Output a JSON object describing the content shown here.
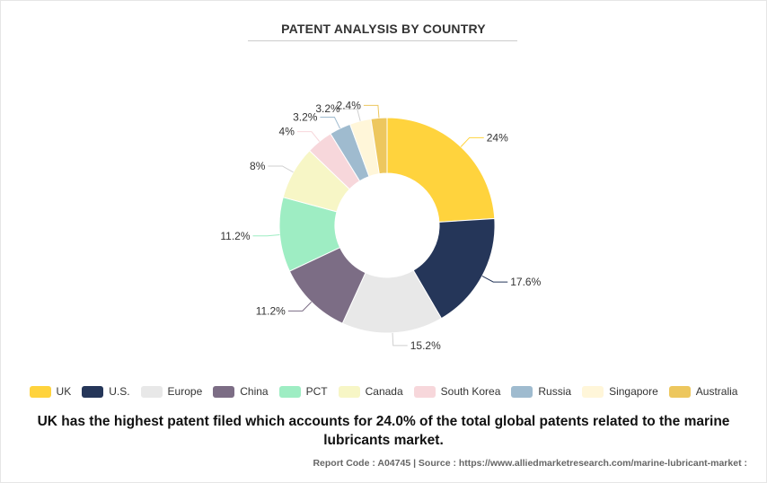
{
  "chart_data": {
    "type": "pie",
    "style": "donut",
    "title": "PATENT ANALYSIS BY COUNTRY",
    "categories": [
      "UK",
      "U.S.",
      "Europe",
      "China",
      "PCT",
      "Canada",
      "South Korea",
      "Russia",
      "Singapore",
      "Australia"
    ],
    "values": [
      24,
      17.6,
      15.2,
      11.2,
      11.2,
      8,
      4,
      3.2,
      3.2,
      2.4
    ],
    "data_labels": [
      "24%",
      "17.6%",
      "15.2%",
      "11.2%",
      "11.2%",
      "8%",
      "4%",
      "3.2%",
      "3.2%",
      "2.4%"
    ],
    "colors": [
      "#FFD33D",
      "#253659",
      "#E8E8E8",
      "#7C6D85",
      "#9EEDC3",
      "#F7F6C6",
      "#F7D7DB",
      "#9FBBCF",
      "#FFF6D9",
      "#EDC75E"
    ],
    "legend_position": "bottom"
  },
  "caption": "UK has the highest patent filed which accounts for 24.0% of the total global patents related to the marine lubricants market.",
  "footer": "Report Code : A04745  |  Source : https://www.alliedmarketresearch.com/marine-lubricant-market :"
}
